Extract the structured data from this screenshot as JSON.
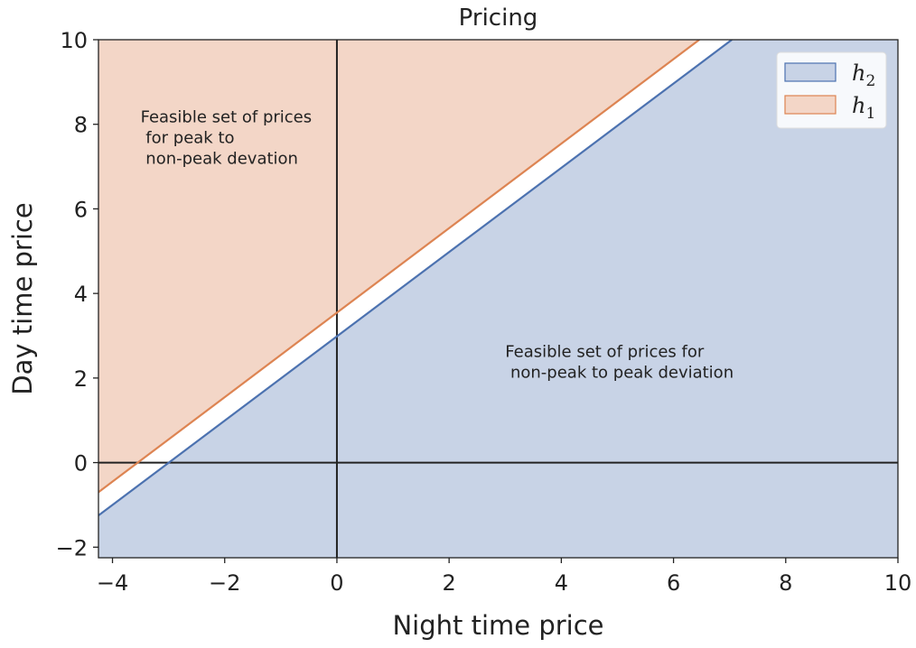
{
  "chart_data": {
    "type": "area",
    "title": "Pricing",
    "xlabel": "Night time price",
    "ylabel": "Day time price",
    "xlim": [
      -4.25,
      10
    ],
    "ylim": [
      -2.25,
      10
    ],
    "x_ticks": [
      -4,
      -2,
      0,
      2,
      4,
      6,
      8,
      10
    ],
    "x_tick_labels": [
      "−4",
      "−2",
      "0",
      "2",
      "4",
      "6",
      "8",
      "10"
    ],
    "y_ticks": [
      -2,
      0,
      2,
      4,
      6,
      8,
      10
    ],
    "y_tick_labels": [
      "−2",
      "0",
      "2",
      "4",
      "6",
      "8",
      "10"
    ],
    "grid": false,
    "reference_lines": {
      "x": 0,
      "y": 0
    },
    "series": [
      {
        "name": "h_2",
        "legend_main": "h",
        "legend_sub": "2",
        "line_color": "#4c72b0",
        "fill_color": "#c8d3e6",
        "fill": "below",
        "x": [
          -4.25,
          7.04
        ],
        "y": [
          -1.25,
          10
        ]
      },
      {
        "name": "h_1",
        "legend_main": "h",
        "legend_sub": "1",
        "line_color": "#dd8452",
        "fill_color": "#f3d6c7",
        "fill": "above",
        "x": [
          -4.25,
          6.46
        ],
        "y": [
          -0.7,
          10
        ]
      }
    ],
    "legend_position": "top-right",
    "annotations": [
      {
        "lines": [
          "Feasible set of prices",
          " for peak to",
          " non-peak devation"
        ],
        "x": -3.5,
        "y": 8.05
      },
      {
        "lines": [
          "Feasible set of prices for",
          " non-peak to peak deviation"
        ],
        "x": 3.0,
        "y": 2.5
      }
    ]
  }
}
